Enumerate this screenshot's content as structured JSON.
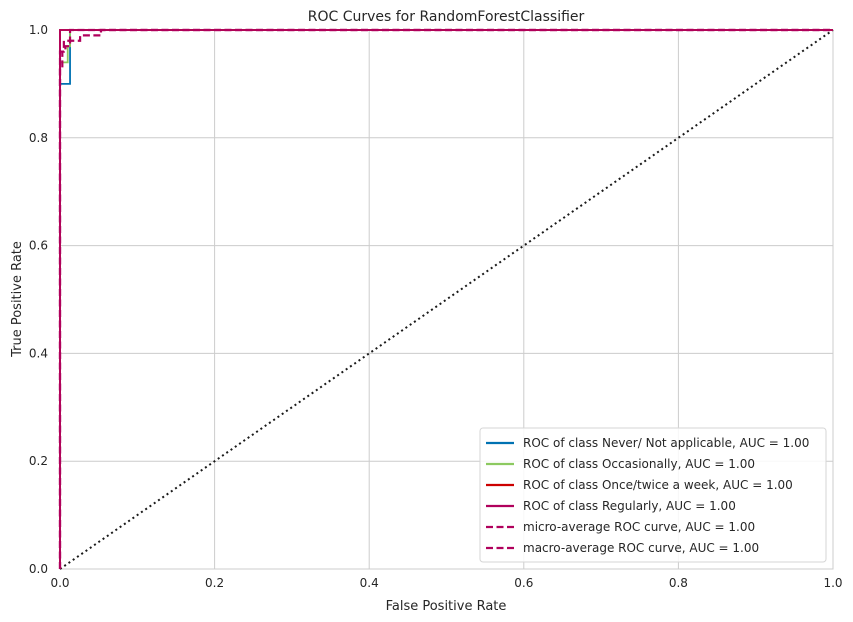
{
  "chart_data": {
    "type": "line",
    "title": "ROC Curves for RandomForestClassifier",
    "xlabel": "False Positive Rate",
    "ylabel": "True Positive Rate",
    "xlim": [
      0.0,
      1.0
    ],
    "ylim": [
      0.0,
      1.0
    ],
    "grid": true,
    "legend_position": "lower-right",
    "x_ticks": [
      "0.0",
      "0.2",
      "0.4",
      "0.6",
      "0.8",
      "1.0"
    ],
    "y_ticks": [
      "0.0",
      "0.2",
      "0.4",
      "0.6",
      "0.8",
      "1.0"
    ],
    "series": [
      {
        "name": "ROC of class Never/ Not applicable, AUC = 1.00",
        "color": "#0072B2",
        "style": "solid",
        "x": [
          0.0,
          0.0,
          0.0,
          0.013,
          0.013,
          1.0
        ],
        "y": [
          0.0,
          0.9,
          0.9,
          0.9,
          1.0,
          1.0
        ]
      },
      {
        "name": "ROC of class Occasionally, AUC = 1.00",
        "color": "#8CC960",
        "style": "solid",
        "x": [
          0.0,
          0.0,
          0.01,
          0.01,
          0.013,
          0.013,
          1.0
        ],
        "y": [
          0.0,
          0.94,
          0.94,
          0.97,
          0.97,
          1.0,
          1.0
        ]
      },
      {
        "name": "ROC of class Once/twice a week, AUC = 1.00",
        "color": "#CC0000",
        "style": "solid",
        "x": [
          0.0,
          0.0,
          1.0
        ],
        "y": [
          0.0,
          1.0,
          1.0
        ]
      },
      {
        "name": "ROC of class Regularly, AUC = 1.00",
        "color": "#B0005C",
        "style": "solid",
        "x": [
          0.0,
          0.0,
          1.0
        ],
        "y": [
          0.0,
          1.0,
          1.0
        ]
      },
      {
        "name": "micro-average ROC curve, AUC = 1.00",
        "color": "#B0005C",
        "style": "dashed",
        "x": [
          0.0,
          0.0,
          0.003,
          0.003,
          0.007,
          0.007,
          0.013,
          0.013,
          0.026,
          0.026,
          0.046,
          0.046,
          0.053,
          0.053,
          1.0
        ],
        "y": [
          0.0,
          0.93,
          0.93,
          0.96,
          0.96,
          0.97,
          0.97,
          0.98,
          0.98,
          0.99,
          0.99,
          0.99,
          0.99,
          1.0,
          1.0
        ]
      },
      {
        "name": "macro-average ROC curve, AUC = 1.00",
        "color": "#B0005C",
        "style": "dashed",
        "x": [
          0.0,
          0.0,
          0.005,
          0.005,
          0.013,
          0.013,
          1.0
        ],
        "y": [
          0.0,
          0.96,
          0.96,
          0.98,
          0.98,
          1.0,
          1.0
        ]
      }
    ],
    "reference_line": {
      "x": [
        0.0,
        1.0
      ],
      "y": [
        0.0,
        1.0
      ],
      "color": "#1a1a1a",
      "style": "dotted"
    }
  }
}
